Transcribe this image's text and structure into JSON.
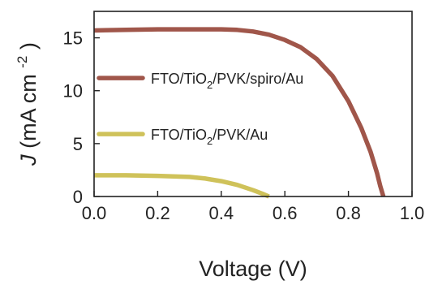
{
  "chart_data": {
    "type": "line",
    "xlabel": "Voltage (V)",
    "ylabel": {
      "symbol": "J",
      "unit": "(mA cm",
      "exp": "-2",
      "close": ")"
    },
    "xlim": [
      0.0,
      1.0
    ],
    "ylim": [
      0,
      17.5
    ],
    "x_ticks": [
      "0.0",
      "0.2",
      "0.4",
      "0.6",
      "0.8",
      "1.0"
    ],
    "y_ticks": [
      "0",
      "5",
      "10",
      "15"
    ],
    "grid": false,
    "legend_position": "center-left",
    "series": [
      {
        "name": "FTO/TiO2/PVK/spiro/Au",
        "name_parts": [
          "FTO/TiO",
          "2",
          "/PVK/spiro/Au"
        ],
        "color": "#a0564a",
        "x": [
          0.0,
          0.1,
          0.2,
          0.3,
          0.4,
          0.45,
          0.5,
          0.55,
          0.6,
          0.65,
          0.7,
          0.75,
          0.8,
          0.84,
          0.87,
          0.89,
          0.9,
          0.91
        ],
        "y": [
          15.7,
          15.75,
          15.8,
          15.8,
          15.8,
          15.75,
          15.6,
          15.3,
          14.8,
          14.1,
          13.0,
          11.4,
          9.0,
          6.5,
          4.2,
          2.2,
          1.0,
          0.0
        ]
      },
      {
        "name": "FTO/TiO2/PVK/Au",
        "name_parts": [
          "FTO/TiO",
          "2",
          "/PVK/Au"
        ],
        "color": "#cfc25a",
        "x": [
          0.0,
          0.1,
          0.2,
          0.3,
          0.35,
          0.4,
          0.45,
          0.5,
          0.53,
          0.55
        ],
        "y": [
          2.0,
          2.0,
          1.95,
          1.85,
          1.7,
          1.45,
          1.1,
          0.6,
          0.25,
          0.0
        ]
      }
    ]
  }
}
